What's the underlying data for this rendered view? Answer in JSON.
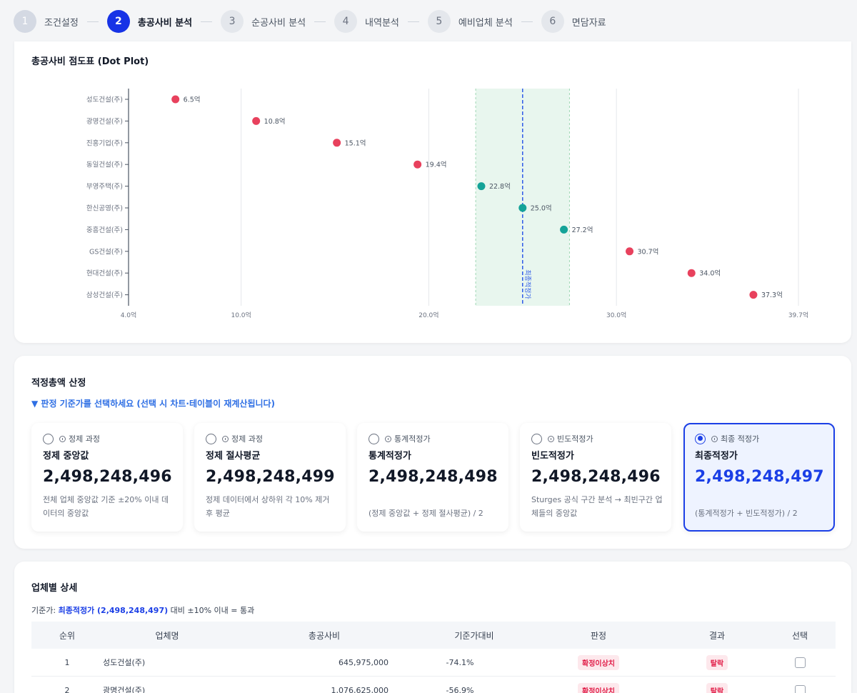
{
  "stepper": [
    {
      "num": "1",
      "label": "조건설정"
    },
    {
      "num": "2",
      "label": "총공사비 분석"
    },
    {
      "num": "3",
      "label": "순공사비 분석"
    },
    {
      "num": "4",
      "label": "내역분석"
    },
    {
      "num": "5",
      "label": "예비업체 분석"
    },
    {
      "num": "6",
      "label": "면담자료"
    }
  ],
  "active_step": 2,
  "chart_section": {
    "title": "총공사비 점도표 (Dot Plot)"
  },
  "chart_data": {
    "type": "scatter",
    "title": "총공사비 점도표 (Dot Plot)",
    "xlim": [
      4.0,
      39.7
    ],
    "xticks": [
      "4.0억",
      "10.0억",
      "20.0억",
      "30.0억",
      "39.7억"
    ],
    "xtick_values": [
      4.0,
      10.0,
      20.0,
      30.0,
      39.7
    ],
    "band": [
      22.5,
      27.5
    ],
    "final_line": {
      "value": 25.0,
      "label": "최종적정가"
    },
    "colors": {
      "outlier": "#e8415d",
      "normal": "#14a398",
      "line": "#2f5be8",
      "band": "#e8f6ee"
    },
    "points": [
      {
        "name": "성도건설(주)",
        "value": 6.5,
        "label": "6.5억",
        "status": "outlier"
      },
      {
        "name": "광명건설(주)",
        "value": 10.8,
        "label": "10.8억",
        "status": "outlier"
      },
      {
        "name": "진흥기업(주)",
        "value": 15.1,
        "label": "15.1억",
        "status": "outlier"
      },
      {
        "name": "동일건설(주)",
        "value": 19.4,
        "label": "19.4억",
        "status": "outlier"
      },
      {
        "name": "부영주택(주)",
        "value": 22.8,
        "label": "22.8억",
        "status": "normal"
      },
      {
        "name": "한신공영(주)",
        "value": 25.0,
        "label": "25.0억",
        "status": "normal"
      },
      {
        "name": "중흥건설(주)",
        "value": 27.2,
        "label": "27.2억",
        "status": "normal"
      },
      {
        "name": "GS건설(주)",
        "value": 30.7,
        "label": "30.7억",
        "status": "outlier"
      },
      {
        "name": "현대건설(주)",
        "value": 34.0,
        "label": "34.0억",
        "status": "outlier"
      },
      {
        "name": "삼성건설(주)",
        "value": 37.3,
        "label": "37.3억",
        "status": "outlier"
      }
    ]
  },
  "selection": {
    "title": "적정총액 산정",
    "hint": "▼ 판정 기준가를 선택하세요 (선택 시 차트·테이블이 재계산됩니다)",
    "options": [
      {
        "tag": "정제 과정",
        "title": "정제 중앙값",
        "value": "2,498,248,496",
        "desc": "전체 업체 중앙값 기준 ±20% 이내 데이터의 중앙값",
        "selected": false
      },
      {
        "tag": "정제 과정",
        "title": "정제 절사평균",
        "value": "2,498,248,499",
        "desc": "정제 데이터에서 상하위 각 10% 제거 후 평균",
        "selected": false
      },
      {
        "tag": "통계적정가",
        "title": "통계적정가",
        "value": "2,498,248,498",
        "desc": "(정제 중앙값 + 정제 절사평균) / 2",
        "selected": false
      },
      {
        "tag": "빈도적정가",
        "title": "빈도적정가",
        "value": "2,498,248,496",
        "desc": "Sturges 공식 구간 분석 → 최빈구간 업체들의 중앙값",
        "selected": false
      },
      {
        "tag": "최종 적정가",
        "title": "최종적정가",
        "value": "2,498,248,497",
        "desc": "(통계적정가 + 빈도적정가) / 2",
        "selected": true
      }
    ]
  },
  "detail": {
    "title": "업체별 상세",
    "basis_prefix": "기준가:",
    "basis_value": "최종적정가 (2,498,248,497)",
    "basis_suffix": "대비 ±10% 이내 = 통과",
    "headers": [
      "순위",
      "업체명",
      "총공사비",
      "기준가대비",
      "판정",
      "결과",
      "선택"
    ],
    "rows": [
      {
        "rank": "1",
        "name": "성도건설(주)",
        "cost": "645,975,000",
        "ratio": "-74.1%",
        "judge": "확정이상치",
        "result": "탈락"
      },
      {
        "rank": "2",
        "name": "광명건설(주)",
        "cost": "1,076,625,000",
        "ratio": "-56.9%",
        "judge": "확정이상치",
        "result": "탈락"
      }
    ]
  }
}
